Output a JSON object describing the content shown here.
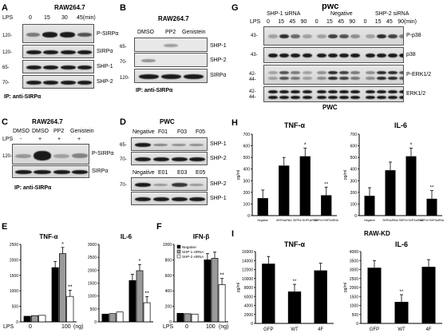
{
  "panels": {
    "A": {
      "letter": "A",
      "cell": "RAW264.7",
      "lps": "LPS",
      "times": [
        "0",
        "15",
        "30",
        "45(min)"
      ],
      "rows": [
        {
          "mw": "120-",
          "label": "P-SIRPα"
        },
        {
          "mw": "120-",
          "label": "SIRPα"
        },
        {
          "mw": "65-",
          "label": "SHP-1"
        },
        {
          "mw": "70-",
          "label": "SHP-2"
        }
      ],
      "ip": "IP: anti-SIRPα"
    },
    "B": {
      "letter": "B",
      "cell": "RAW264.7",
      "treatments": [
        "DMSO",
        "PP2",
        "Genistein"
      ],
      "rows": [
        {
          "mw": "65-",
          "label": "SHP-1"
        },
        {
          "mw": "70-",
          "label": "SHP-2"
        },
        {
          "mw": "120-",
          "label": "SIRPα"
        }
      ],
      "ip": "IP: anti-SIRPα"
    },
    "C": {
      "letter": "C",
      "cell": "RAW264.7",
      "treatments": [
        "DMSO",
        "DMSO",
        "PP2",
        "Genistein"
      ],
      "lps": "LPS",
      "signs": [
        "-",
        "+",
        "+",
        "+"
      ],
      "rows": [
        {
          "mw": "120-",
          "label": "P-SIRPα"
        },
        {
          "mw": "",
          "label": "SIRPα"
        }
      ],
      "ip": "IP: anti-SIRPα"
    },
    "D": {
      "letter": "D",
      "cell": "PWC",
      "top_lanes": [
        "Negative",
        "F01",
        "F03",
        "F05"
      ],
      "bottom_lanes": [
        "Negative",
        "E01",
        "E03",
        "E05"
      ],
      "top_rows": [
        {
          "mw": "65-",
          "label": "SHP-1"
        },
        {
          "mw": "70-",
          "label": "SHP-2"
        }
      ],
      "bottom_rows": [
        {
          "mw": "70-",
          "label": "SHP-2"
        },
        {
          "mw": "",
          "label": "SHP-1"
        }
      ]
    },
    "E": {
      "letter": "E",
      "lps": "LPS",
      "xt": [
        "0",
        "100",
        "(ng)"
      ]
    },
    "F": {
      "letter": "F",
      "lps": "LPS",
      "xt": [
        "0",
        "100",
        "(ng)"
      ]
    },
    "G": {
      "letter": "G",
      "cell": "pwc",
      "groups": [
        "SHP-1 siRNA",
        "Negative",
        "SHP-2 siRNA"
      ],
      "lps": "LPS",
      "times": [
        "0",
        "15",
        "45",
        "90",
        "0",
        "15",
        "45",
        "90",
        "0",
        "15",
        "45",
        "90(min)"
      ],
      "rows": [
        {
          "mw": "43-",
          "label": "P-p38"
        },
        {
          "mw": "43-",
          "label": "p38"
        },
        {
          "mw": "42- 44-",
          "label": "P-ERK1/2"
        },
        {
          "mw": "42- 44-",
          "label": "ERK1/2"
        }
      ],
      "footer": "PWC"
    },
    "H": {
      "letter": "H"
    },
    "I": {
      "letter": "I",
      "cell": "RAW-KD"
    }
  },
  "chart_data": [
    {
      "id": "E1",
      "type": "bar",
      "title": "TNF-α",
      "categories": [
        "0",
        "100"
      ],
      "series": [
        {
          "values": [
            180,
            1750
          ]
        },
        {
          "values": [
            200,
            2200
          ]
        },
        {
          "values": [
            210,
            820
          ]
        }
      ],
      "ylim": [
        0,
        2500
      ],
      "yticks": [
        "0",
        "500",
        "1000",
        "1500",
        "2000",
        "2500"
      ],
      "annotations": [
        "*",
        "**"
      ],
      "fills": [
        "#000000",
        "#9a9a9a",
        "#ffffff"
      ]
    },
    {
      "id": "E2",
      "type": "bar",
      "title": "IL-6",
      "categories": [
        "0",
        "100"
      ],
      "series": [
        {
          "values": [
            300,
            1600
          ]
        },
        {
          "values": [
            320,
            1980
          ]
        },
        {
          "values": [
            380,
            740
          ]
        }
      ],
      "ylim": [
        0,
        3000
      ],
      "yticks": [
        "0",
        "500",
        "1000",
        "1500",
        "2000",
        "2500",
        "3000"
      ],
      "annotations": [
        "*",
        "**"
      ],
      "fills": [
        "#000000",
        "#9a9a9a",
        "#ffffff"
      ]
    },
    {
      "id": "F",
      "type": "bar",
      "title": "IFN-β",
      "categories": [
        "0",
        "100"
      ],
      "series": [
        {
          "name": "Negative",
          "values": [
            110,
            800
          ]
        },
        {
          "name": "SHP-1 siRNA",
          "values": [
            105,
            820
          ]
        },
        {
          "name": "SHP-2 siRNA",
          "values": [
            100,
            480
          ]
        }
      ],
      "ylim": [
        0,
        1000
      ],
      "yticks": [
        "0",
        "200",
        "400",
        "600",
        "800",
        "1000"
      ],
      "annotations": [
        "**"
      ],
      "fills": [
        "#000000",
        "#9a9a9a",
        "#ffffff"
      ]
    },
    {
      "id": "H1",
      "type": "bar",
      "title": "TNF-α",
      "ylabel": "pg/ml",
      "categories": [
        "Negative",
        "SIRPαsiRNA",
        "SIRPα+SHP1siRNA",
        "SIRPα+SHP2siRNA"
      ],
      "values": [
        150,
        430,
        510,
        175
      ],
      "ylim": [
        0,
        700
      ],
      "yticks": [
        "0",
        "100",
        "200",
        "300",
        "400",
        "500",
        "600",
        "700"
      ],
      "annotations": [
        "*",
        "**"
      ]
    },
    {
      "id": "H2",
      "type": "bar",
      "title": "IL-6",
      "ylabel": "pg/ml",
      "categories": [
        "Negative",
        "SIRPαsiRNA",
        "SIRPα+SHP1siRNA",
        "SIRPα+SHP2siRNA"
      ],
      "values": [
        170,
        390,
        510,
        145
      ],
      "ylim": [
        0,
        700
      ],
      "yticks": [
        "0",
        "100",
        "200",
        "300",
        "400",
        "500",
        "600",
        "700"
      ],
      "annotations": [
        "*",
        "**"
      ]
    },
    {
      "id": "I1",
      "type": "bar",
      "title": "TNF-α",
      "ylabel": "pg/ml",
      "categories": [
        "GFP",
        "WT",
        "4F"
      ],
      "values": [
        13300,
        7100,
        11800
      ],
      "ylim": [
        0,
        16000
      ],
      "yticks": [
        "0",
        "2000",
        "4000",
        "6000",
        "8000",
        "10000",
        "12000",
        "14000",
        "16000"
      ],
      "annotations": [
        "**"
      ]
    },
    {
      "id": "I2",
      "type": "bar",
      "title": "IL-6",
      "ylabel": "pg/ml",
      "categories": [
        "GFP",
        "WT",
        "4F"
      ],
      "values": [
        3100,
        1200,
        3150
      ],
      "ylim": [
        0,
        4000
      ],
      "yticks": [
        "0",
        "500",
        "1000",
        "1500",
        "2000",
        "2500",
        "3000",
        "3500",
        "4000"
      ],
      "annotations": [
        "**"
      ]
    }
  ]
}
